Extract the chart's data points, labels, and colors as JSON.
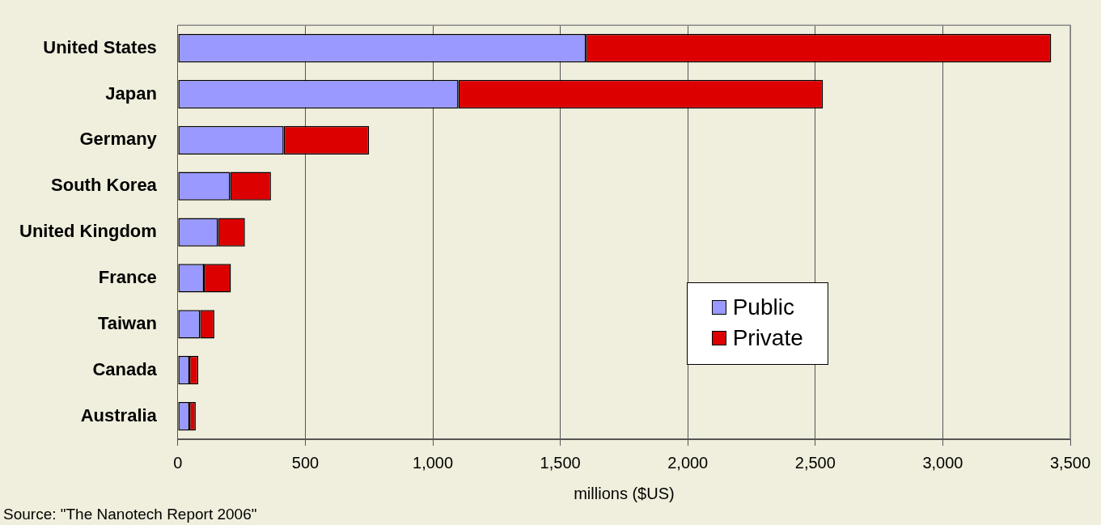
{
  "chart_data": {
    "type": "bar",
    "orientation": "horizontal",
    "stacked": true,
    "categories": [
      "United States",
      "Japan",
      "Germany",
      "South Korea",
      "United Kingdom",
      "France",
      "Taiwan",
      "Canada",
      "Australia"
    ],
    "series": [
      {
        "name": "Public",
        "color": "#9999ff",
        "values": [
          1600,
          1100,
          415,
          205,
          157,
          102,
          87,
          45,
          45
        ]
      },
      {
        "name": "Private",
        "color": "#dd0000",
        "values": [
          1825,
          1430,
          335,
          160,
          106,
          106,
          56,
          35,
          25
        ]
      }
    ],
    "xlim": [
      0,
      3500
    ],
    "xticks": [
      0,
      {
        "value": 500,
        "label": "500"
      },
      {
        "value": 1000,
        "label": "1,000"
      },
      {
        "value": 1500,
        "label": "1,500"
      },
      {
        "value": 2000,
        "label": "2,000"
      },
      {
        "value": 2500,
        "label": "2,500"
      },
      {
        "value": 3000,
        "label": "3,000"
      },
      {
        "value": 3500,
        "label": "3,500"
      }
    ],
    "xlabel": "millions ($US)",
    "grid": "x",
    "legend": "right",
    "annotations": [
      "Source: \"The Nanotech Report 2006\""
    ]
  }
}
